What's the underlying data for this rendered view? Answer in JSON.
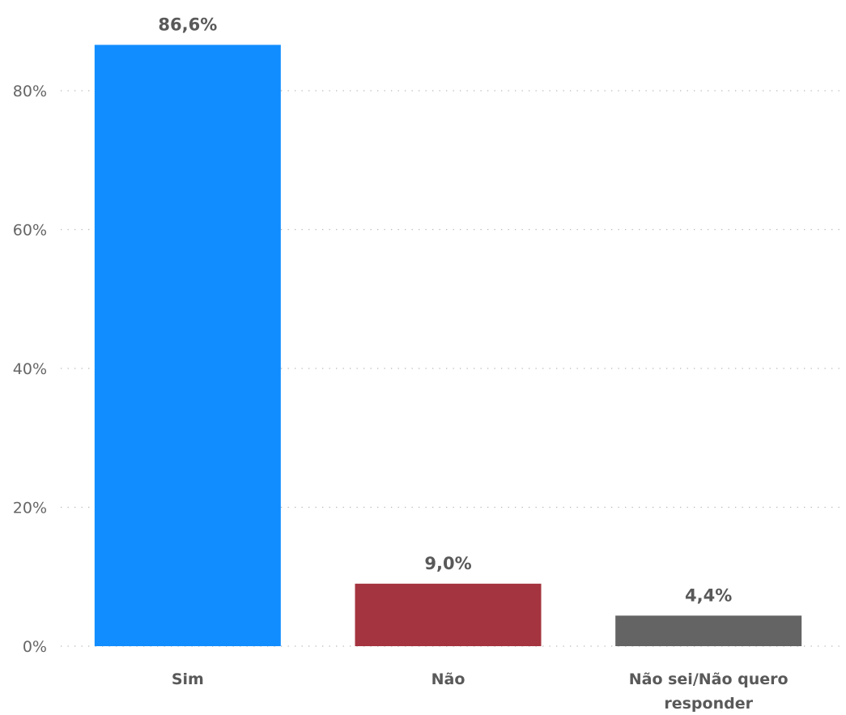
{
  "chart_data": {
    "type": "bar",
    "title": "",
    "xlabel": "",
    "ylabel": "",
    "ylim": [
      0,
      90
    ],
    "grid": true,
    "y_ticks": [
      "0%",
      "20%",
      "40%",
      "60%",
      "80%"
    ],
    "y_tick_values": [
      0,
      20,
      40,
      60,
      80
    ],
    "categories": [
      [
        "Sim"
      ],
      [
        "Não"
      ],
      [
        "Não sei/Não quero",
        "responder"
      ]
    ],
    "values": [
      86.6,
      9.0,
      4.4
    ],
    "value_labels": [
      "86,6%",
      "9,0%",
      "4,4%"
    ],
    "colors": [
      "#118DFF",
      "#A4343F",
      "#646464"
    ]
  }
}
